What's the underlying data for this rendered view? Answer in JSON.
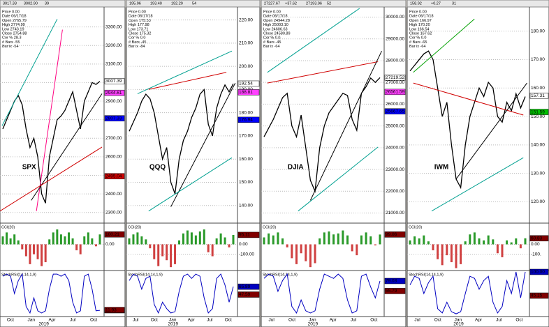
{
  "panels": [
    {
      "name": "SPX",
      "toolbar": [
        "3017.33",
        "3002.90",
        "39"
      ],
      "info": [
        "Price 0.00",
        "Date 06/17/18",
        "Open 2765.79",
        "High 2774.99",
        "Low 2743.19",
        "Close 2754.88",
        "Cor % 28.3",
        "# Bars -55",
        "Bar ix -54"
      ],
      "price": {
        "ylim": [
          2250,
          3400
        ],
        "yticks": [
          {
            "value": 2300,
            "label": "2300.00"
          },
          {
            "value": 2400,
            "label": "2400.00"
          },
          {
            "value": 2500,
            "label": "2500.00"
          },
          {
            "value": 2600,
            "label": "2600.00"
          },
          {
            "value": 2700,
            "label": "2700.00"
          },
          {
            "value": 2800,
            "label": "2800.00"
          },
          {
            "value": 2900,
            "label": "2900.00"
          },
          {
            "value": 3000,
            "label": "3000.00"
          },
          {
            "value": 3100,
            "label": "3100.00"
          },
          {
            "value": 3200,
            "label": "3200.00"
          },
          {
            "value": 3300,
            "label": "3300.00"
          }
        ],
        "values": [
          2750,
          2800,
          2850,
          2900,
          2930,
          2880,
          2750,
          2650,
          2700,
          2600,
          2400,
          2350,
          2600,
          2700,
          2800,
          2820,
          2850,
          2900,
          2950,
          2850,
          2750,
          2900,
          2950,
          3000,
          2990,
          3007
        ],
        "tags": [
          {
            "value": 3007.39,
            "color": "#ffffff"
          },
          {
            "value": 2944.61,
            "color": "#ff40ff"
          },
          {
            "value": 2807.33,
            "color": "#0000ff"
          },
          {
            "value": 2495.04,
            "color": "#d00000"
          }
        ]
      },
      "cci": {
        "label": "CCI(20)",
        "ylim": [
          -250,
          200
        ],
        "yticks": [
          {
            "value": 0,
            "label": "0.00"
          }
        ],
        "values": [
          80,
          120,
          60,
          100,
          40,
          -50,
          -120,
          -200,
          -100,
          -150,
          -220,
          -180,
          50,
          120,
          150,
          100,
          80,
          120,
          60,
          -60,
          -100,
          80,
          120,
          60,
          -20,
          100
        ],
        "tags": [
          {
            "value": 100.21,
            "color": "#800000"
          }
        ]
      },
      "stoch": {
        "label": "StochRSI(14,14,1,9)",
        "ylim": [
          0,
          100
        ],
        "values": [
          90,
          95,
          90,
          50,
          80,
          95,
          20,
          5,
          40,
          10,
          5,
          10,
          60,
          95,
          95,
          90,
          95,
          80,
          30,
          5,
          10,
          90,
          95,
          60,
          10,
          11
        ],
        "tags": [
          {
            "value": 11.3,
            "label": "11.30",
            "color": "#0000c0"
          },
          {
            "value": 11.93,
            "color": "#800000"
          }
        ]
      },
      "xticks": [
        "Oct",
        "Jan",
        "Apr",
        "Jul",
        "Oct"
      ],
      "year": "2019"
    },
    {
      "name": "QQQ",
      "toolbar": [
        "195.96",
        "193.40",
        "192.29",
        "54"
      ],
      "info": [
        "Price 0.00",
        "Date 06/17/18",
        "Open 175.53",
        "High 177.98",
        "Low 173.71",
        "Close 175.32",
        "Cor % 0.0",
        "# Bars -45",
        "Bar ix -84"
      ],
      "price": {
        "ylim": [
          133,
          225
        ],
        "yticks": [
          {
            "value": 140,
            "label": "140.00"
          },
          {
            "value": 150,
            "label": "150.00"
          },
          {
            "value": 160,
            "label": "160.00"
          },
          {
            "value": 170,
            "label": "170.00"
          },
          {
            "value": 180,
            "label": "180.00"
          },
          {
            "value": 190,
            "label": "190.00"
          },
          {
            "value": 200,
            "label": "200.00"
          },
          {
            "value": 210,
            "label": "210.00"
          },
          {
            "value": 220,
            "label": "220.00"
          }
        ],
        "values": [
          172,
          176,
          180,
          185,
          188,
          186,
          180,
          170,
          160,
          165,
          150,
          145,
          160,
          168,
          172,
          178,
          182,
          188,
          190,
          175,
          170,
          182,
          188,
          192,
          189,
          192.5
        ],
        "tags": [
          {
            "value": 192.54,
            "color": "#ffffff"
          },
          {
            "value": 188.81,
            "color": "#ff40ff"
          },
          {
            "value": 176.94,
            "color": "#0000ff"
          }
        ]
      },
      "cci": {
        "label": "CCI(20)",
        "ylim": [
          -250,
          200
        ],
        "yticks": [
          {
            "value": 0,
            "label": "0.00"
          },
          {
            "value": -100,
            "label": "-100.00"
          }
        ],
        "values": [
          60,
          100,
          120,
          80,
          50,
          -40,
          -150,
          -220,
          -120,
          -160,
          -230,
          -200,
          40,
          110,
          140,
          120,
          90,
          130,
          150,
          -80,
          -120,
          60,
          110,
          70,
          -30,
          95
        ],
        "tags": [
          {
            "value": 95.11,
            "color": "#800000"
          }
        ]
      },
      "stoch": {
        "label": "StochRSI(14,14,1,9)",
        "ylim": [
          0,
          100
        ],
        "values": [
          80,
          95,
          90,
          60,
          85,
          90,
          25,
          5,
          30,
          15,
          5,
          8,
          55,
          90,
          95,
          85,
          95,
          90,
          40,
          5,
          15,
          85,
          95,
          70,
          30,
          66
        ],
        "tags": [
          {
            "value": 65.89,
            "color": "#0000c0"
          },
          {
            "value": 47.59,
            "color": "#800000"
          }
        ]
      },
      "xticks": [
        "Jul",
        "Oct",
        "Jan",
        "Apr",
        "Jul",
        "Oct"
      ],
      "year": "2019"
    },
    {
      "name": "DJIA",
      "toolbar": [
        "27227.67",
        "+37.62",
        "27193.96",
        "52"
      ],
      "info": [
        "Price 0.00",
        "Date 06/17/18",
        "Open 24944.28",
        "High 25003.10",
        "Low 24606.63",
        "Close 24580.89",
        "Cor % 0.0",
        "# Bars -45",
        "Bar ix -64"
      ],
      "price": {
        "ylim": [
          20600,
          30400
        ],
        "yticks": [
          {
            "value": 21000,
            "label": "21000.00"
          },
          {
            "value": 22000,
            "label": "22000.00"
          },
          {
            "value": 23000,
            "label": "23000.00"
          },
          {
            "value": 24000,
            "label": "24000.00"
          },
          {
            "value": 25000,
            "label": "25000.00"
          },
          {
            "value": 26000,
            "label": "26000.00"
          },
          {
            "value": 27000,
            "label": "27000.00"
          },
          {
            "value": 28000,
            "label": "28000.00"
          },
          {
            "value": 29000,
            "label": "29000.00"
          },
          {
            "value": 30000,
            "label": "30000.00"
          }
        ],
        "values": [
          24500,
          24900,
          25300,
          25800,
          26300,
          26500,
          25000,
          24500,
          25500,
          24000,
          22500,
          22000,
          24000,
          25000,
          25600,
          25900,
          26200,
          26500,
          26400,
          25300,
          24800,
          26500,
          26800,
          27200,
          27000,
          27219
        ],
        "tags": [
          {
            "value": 27219.52,
            "color": "#ffffff"
          },
          {
            "value": 26561.59,
            "color": "#ff40ff"
          },
          {
            "value": 25667.65,
            "color": "#0000ff"
          }
        ]
      },
      "cci": {
        "label": "CCI(20)",
        "ylim": [
          -250,
          200
        ],
        "yticks": [],
        "values": [
          70,
          110,
          90,
          120,
          60,
          -30,
          -140,
          -200,
          -90,
          -170,
          -230,
          -190,
          60,
          120,
          130,
          100,
          110,
          140,
          90,
          -70,
          -110,
          90,
          120,
          80,
          -10,
          99
        ],
        "tags": [
          {
            "value": 99.06,
            "color": "#800000"
          }
        ]
      },
      "stoch": {
        "label": "StochRSI(14,14,1,9)",
        "ylim": [
          0,
          100
        ],
        "values": [
          85,
          95,
          90,
          55,
          80,
          95,
          20,
          5,
          35,
          10,
          5,
          10,
          60,
          95,
          90,
          85,
          95,
          85,
          35,
          5,
          10,
          90,
          95,
          65,
          40,
          79
        ],
        "tags": [
          {
            "value": 79.03,
            "color": "#0000c0"
          },
          {
            "value": 55.79,
            "color": "#800000"
          }
        ]
      },
      "xticks": [
        "Jul",
        "Oct",
        "Jan",
        "Apr",
        "Jul",
        "Oct"
      ],
      "year": "2019"
    },
    {
      "name": "IWM",
      "toolbar": [
        "158.92",
        "+0.27",
        "31"
      ],
      "info": [
        "Price 0.00",
        "Date 06/17/18",
        "Open 166.97",
        "High 170.20",
        "Low 166.54",
        "Close 167.62",
        "Cor % 0.0",
        "# Bars -65",
        "Bar ix -64"
      ],
      "price": {
        "ylim": [
          113,
          188
        ],
        "yticks": [
          {
            "value": 120,
            "label": "120.00"
          },
          {
            "value": 130,
            "label": "130.00"
          },
          {
            "value": 140,
            "label": "140.00"
          },
          {
            "value": 150,
            "label": "150.00"
          },
          {
            "value": 160,
            "label": "160.00"
          },
          {
            "value": 170,
            "label": "170.00"
          },
          {
            "value": 180,
            "label": "180.00"
          }
        ],
        "values": [
          166,
          168,
          170,
          172,
          173,
          170,
          160,
          150,
          155,
          140,
          128,
          125,
          140,
          150,
          155,
          160,
          157,
          162,
          160,
          150,
          148,
          155,
          152,
          158,
          153,
          157
        ],
        "tags": [
          {
            "value": 157.31,
            "color": "#ffffff"
          },
          {
            "value": 151.59,
            "color": "#00c000"
          }
        ]
      },
      "cci": {
        "label": "CCI(20)",
        "ylim": [
          -250,
          200
        ],
        "yticks": [
          {
            "value": 0,
            "label": "0.00"
          },
          {
            "value": -100,
            "label": "-100."
          }
        ],
        "values": [
          40,
          80,
          60,
          90,
          30,
          -60,
          -150,
          -210,
          -110,
          -180,
          -240,
          -200,
          30,
          100,
          120,
          60,
          40,
          90,
          50,
          -90,
          -130,
          40,
          20,
          60,
          -40,
          61
        ],
        "tags": [
          {
            "value": 60.83,
            "color": "#800000"
          }
        ]
      },
      "stoch": {
        "label": "StochRSI(14,14,1,9)",
        "ylim": [
          0,
          100
        ],
        "values": [
          70,
          90,
          85,
          50,
          75,
          90,
          15,
          5,
          30,
          8,
          3,
          8,
          50,
          90,
          85,
          60,
          80,
          90,
          30,
          5,
          20,
          80,
          50,
          100,
          40,
          100
        ],
        "tags": [
          {
            "value": 100,
            "label": "100.00",
            "color": "#0000c0"
          },
          {
            "value": 45.15,
            "color": "#800000"
          }
        ]
      },
      "xticks": [
        "Jul",
        "Oct",
        "Jan",
        "Apr",
        "Jul",
        "Oct"
      ],
      "year": "2019"
    }
  ]
}
